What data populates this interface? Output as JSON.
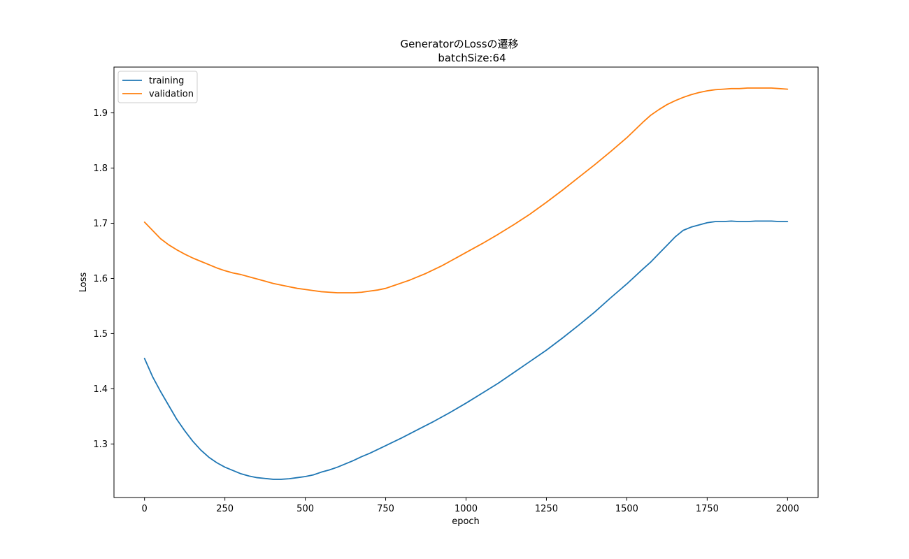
{
  "chart_data": {
    "type": "line",
    "title": "GeneratorのLossの遷移",
    "subtitle": "batchSize:64",
    "xlabel": "epoch",
    "ylabel": "Loss",
    "xlim": [
      -95,
      2095
    ],
    "ylim": [
      1.203,
      1.983
    ],
    "xticks": [
      0,
      250,
      500,
      750,
      1000,
      1250,
      1500,
      1750,
      2000
    ],
    "yticks": [
      1.3,
      1.4,
      1.5,
      1.6,
      1.7,
      1.8,
      1.9
    ],
    "xtick_labels": [
      "0",
      "250",
      "500",
      "750",
      "1000",
      "1250",
      "1500",
      "1750",
      "2000"
    ],
    "ytick_labels": [
      "1.3",
      "1.4",
      "1.5",
      "1.6",
      "1.7",
      "1.8",
      "1.9"
    ],
    "grid": false,
    "legend_position": "top-left",
    "series": [
      {
        "name": "training",
        "color": "#1f77b4",
        "x": [
          0,
          25,
          50,
          75,
          100,
          125,
          150,
          175,
          200,
          225,
          250,
          275,
          300,
          325,
          350,
          375,
          400,
          425,
          450,
          475,
          500,
          525,
          550,
          575,
          600,
          625,
          650,
          675,
          700,
          725,
          750,
          800,
          850,
          900,
          950,
          1000,
          1050,
          1100,
          1150,
          1200,
          1250,
          1300,
          1350,
          1400,
          1450,
          1500,
          1550,
          1575,
          1600,
          1625,
          1650,
          1675,
          1700,
          1725,
          1750,
          1775,
          1800,
          1825,
          1850,
          1875,
          1900,
          1925,
          1950,
          1975,
          2000
        ],
        "y": [
          1.455,
          1.422,
          1.395,
          1.37,
          1.345,
          1.324,
          1.305,
          1.289,
          1.276,
          1.266,
          1.258,
          1.252,
          1.246,
          1.242,
          1.239,
          1.2375,
          1.236,
          1.236,
          1.237,
          1.239,
          1.241,
          1.244,
          1.249,
          1.253,
          1.258,
          1.264,
          1.27,
          1.277,
          1.283,
          1.29,
          1.297,
          1.311,
          1.326,
          1.341,
          1.357,
          1.374,
          1.392,
          1.41,
          1.43,
          1.45,
          1.47,
          1.492,
          1.515,
          1.539,
          1.565,
          1.59,
          1.617,
          1.63,
          1.645,
          1.66,
          1.675,
          1.687,
          1.693,
          1.697,
          1.701,
          1.703,
          1.703,
          1.704,
          1.703,
          1.703,
          1.704,
          1.704,
          1.704,
          1.703,
          1.703
        ]
      },
      {
        "name": "validation",
        "color": "#ff7f0e",
        "x": [
          0,
          25,
          50,
          75,
          100,
          125,
          150,
          175,
          200,
          225,
          250,
          275,
          300,
          325,
          350,
          375,
          400,
          425,
          450,
          475,
          500,
          525,
          550,
          575,
          600,
          625,
          650,
          675,
          700,
          725,
          750,
          775,
          800,
          825,
          850,
          875,
          900,
          925,
          950,
          975,
          1000,
          1050,
          1100,
          1150,
          1200,
          1250,
          1300,
          1350,
          1400,
          1450,
          1500,
          1550,
          1575,
          1600,
          1625,
          1650,
          1675,
          1700,
          1725,
          1750,
          1775,
          1800,
          1825,
          1850,
          1875,
          1900,
          1925,
          1950,
          1975,
          2000
        ],
        "y": [
          1.702,
          1.687,
          1.672,
          1.661,
          1.652,
          1.644,
          1.637,
          1.631,
          1.625,
          1.619,
          1.614,
          1.61,
          1.607,
          1.603,
          1.599,
          1.595,
          1.591,
          1.588,
          1.585,
          1.582,
          1.58,
          1.578,
          1.576,
          1.575,
          1.574,
          1.574,
          1.574,
          1.575,
          1.577,
          1.579,
          1.582,
          1.587,
          1.592,
          1.597,
          1.603,
          1.609,
          1.616,
          1.623,
          1.631,
          1.639,
          1.647,
          1.663,
          1.68,
          1.698,
          1.717,
          1.738,
          1.76,
          1.783,
          1.806,
          1.83,
          1.855,
          1.883,
          1.896,
          1.906,
          1.915,
          1.922,
          1.928,
          1.933,
          1.937,
          1.94,
          1.942,
          1.943,
          1.944,
          1.944,
          1.945,
          1.945,
          1.945,
          1.945,
          1.944,
          1.943
        ]
      }
    ]
  }
}
